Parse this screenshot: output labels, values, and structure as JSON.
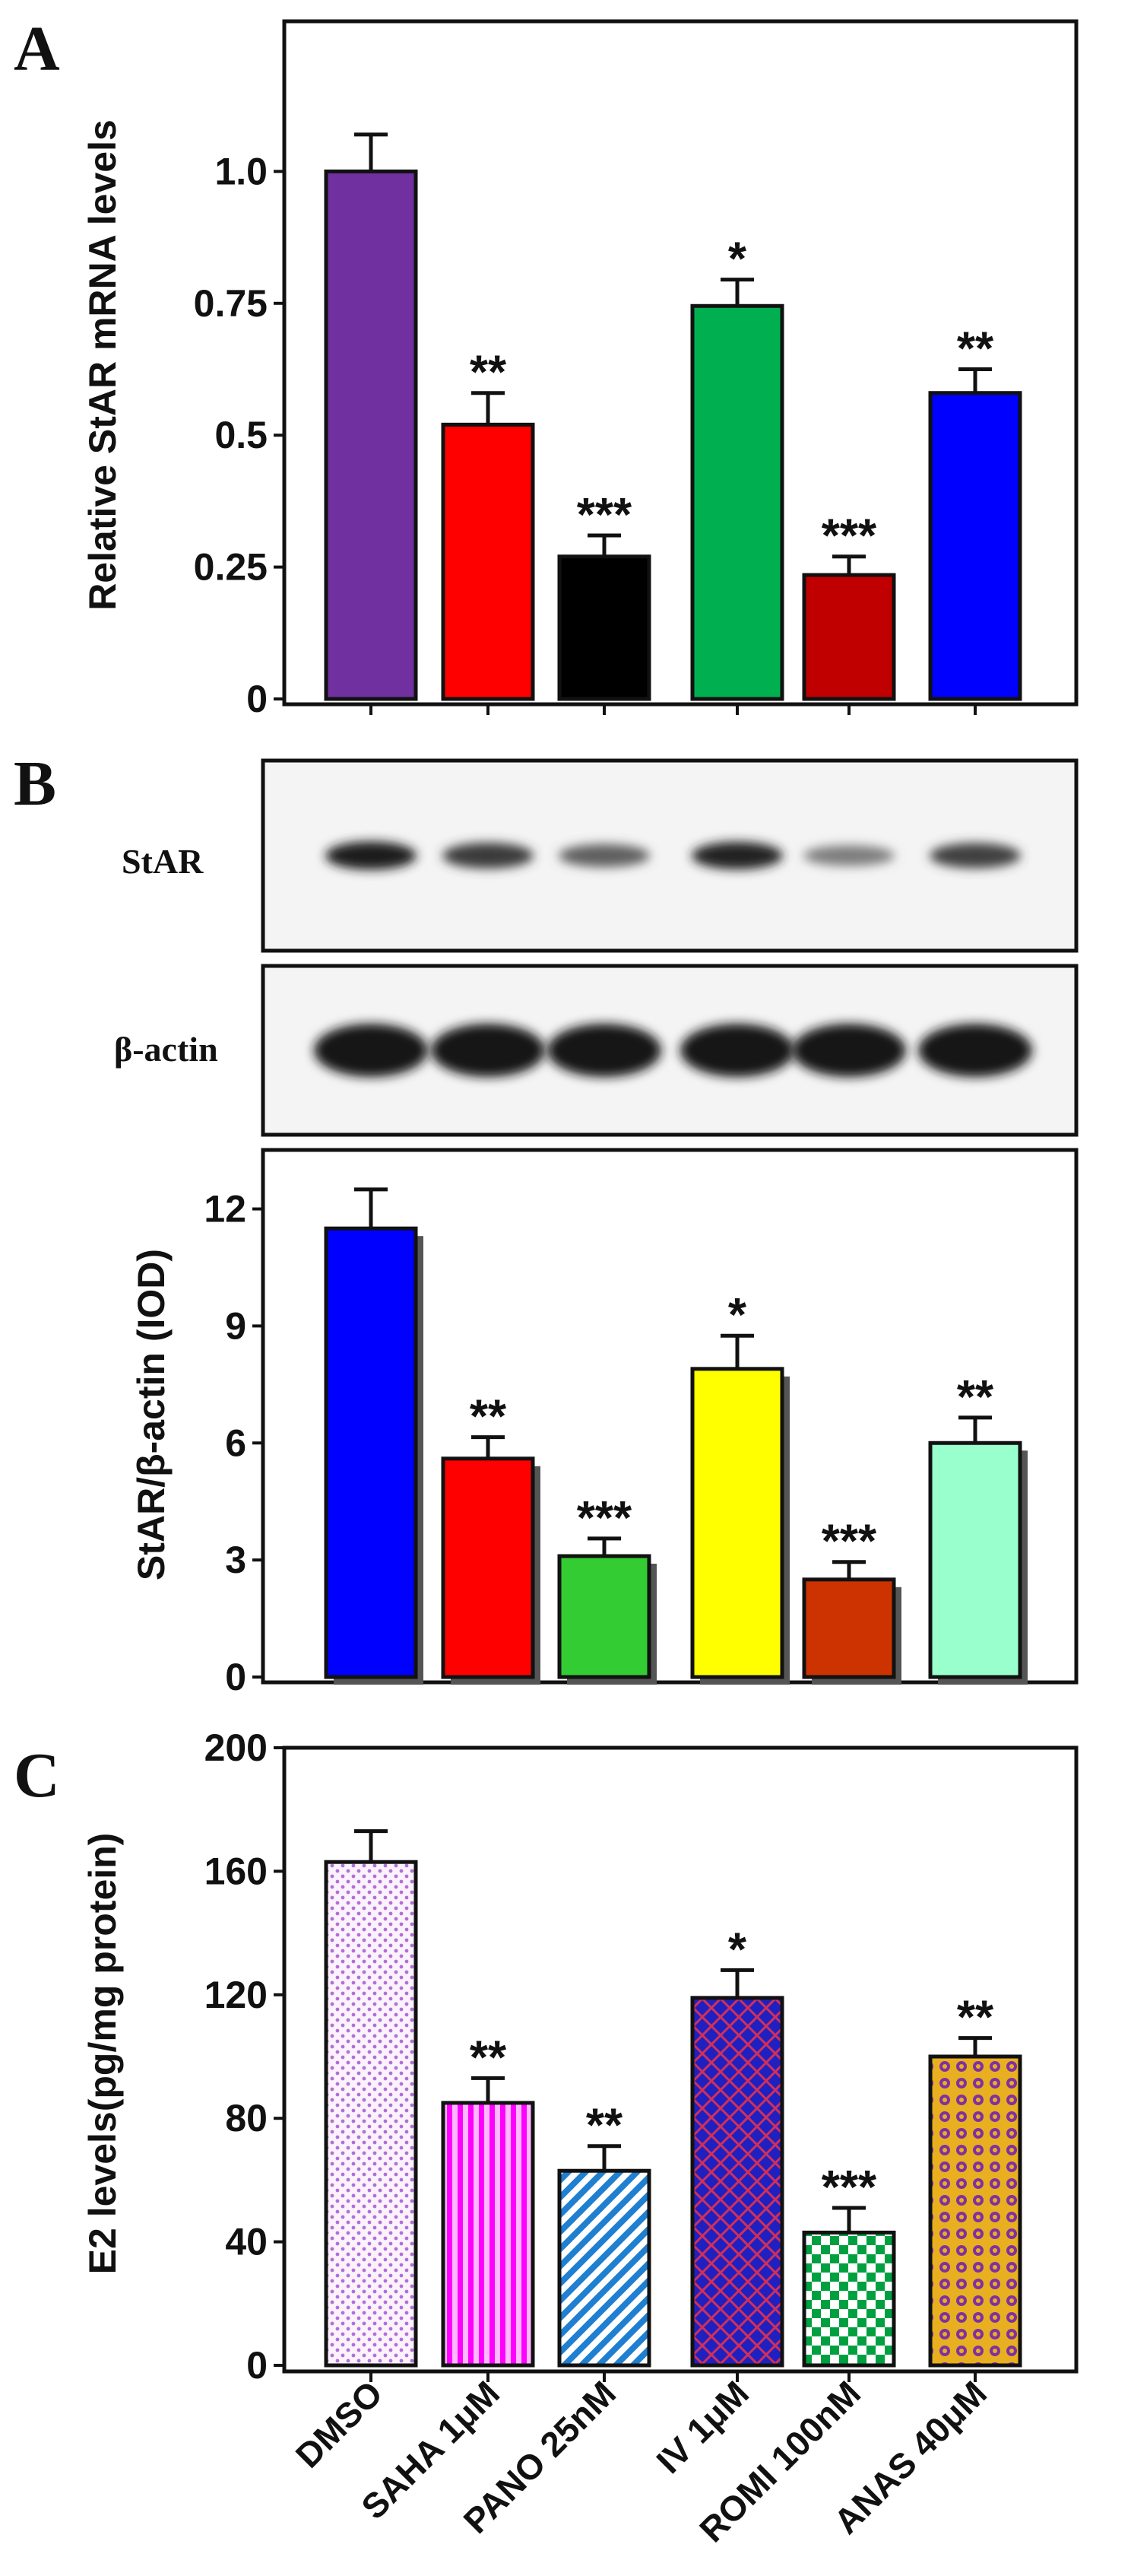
{
  "categories": [
    "DMSO",
    "SAHA 1μM",
    "PANO 25nM",
    "IV 1μM",
    "ROMI 100nM",
    "ANAS 40μM"
  ],
  "panels": {
    "A": {
      "letter": "A"
    },
    "B": {
      "letter": "B",
      "blot_labels": [
        "StAR",
        "β-actin"
      ]
    },
    "C": {
      "letter": "C"
    }
  },
  "chart_data": [
    {
      "panel": "A",
      "type": "bar",
      "categories": [
        "DMSO",
        "SAHA 1μM",
        "PANO 25nM",
        "IV 1μM",
        "ROMI 100nM",
        "ANAS 40μM"
      ],
      "values": [
        1.0,
        0.52,
        0.27,
        0.745,
        0.235,
        0.58
      ],
      "errors": [
        0.07,
        0.06,
        0.04,
        0.05,
        0.035,
        0.045
      ],
      "significance": [
        "",
        "**",
        "***",
        "*",
        "***",
        "**"
      ],
      "colors": [
        "#7030A0",
        "#FF0000",
        "#000000",
        "#00B050",
        "#C00000",
        "#0000FF"
      ],
      "ylabel": "Relative StAR mRNA levels",
      "ylim": [
        0,
        1.25
      ],
      "yticks": [
        0,
        0.25,
        0.5,
        0.75,
        1.0
      ],
      "ytick_labels": [
        "0",
        "0.25",
        "0.5",
        "0.75",
        "1.0"
      ],
      "xlabel": "",
      "grid": false
    },
    {
      "panel": "B",
      "type": "bar",
      "categories": [
        "DMSO",
        "SAHA 1μM",
        "PANO 25nM",
        "IV 1μM",
        "ROMI 100nM",
        "ANAS 40μM"
      ],
      "values": [
        11.5,
        5.6,
        3.1,
        7.9,
        2.5,
        6.0
      ],
      "errors": [
        1.0,
        0.55,
        0.45,
        0.85,
        0.45,
        0.65
      ],
      "significance": [
        "",
        "**",
        "***",
        "*",
        "***",
        "**"
      ],
      "colors": [
        "#0000FF",
        "#FF0000",
        "#33CC33",
        "#FFFF00",
        "#CC3300",
        "#99FFCC"
      ],
      "ylabel": "StAR/β-actin  (IOD)",
      "ylim": [
        0,
        13.2
      ],
      "yticks": [
        0,
        3,
        6,
        9,
        12
      ],
      "ytick_labels": [
        "0",
        "3",
        "6",
        "9",
        "12"
      ],
      "xlabel": "",
      "grid": false
    },
    {
      "panel": "C",
      "type": "bar",
      "categories": [
        "DMSO",
        "SAHA 1μM",
        "PANO 25nM",
        "IV 1μM",
        "ROMI 100nM",
        "ANAS 40μM"
      ],
      "values": [
        163,
        85,
        63,
        119,
        43,
        100
      ],
      "errors": [
        10,
        8,
        8,
        9,
        8,
        6
      ],
      "significance": [
        "",
        "**",
        "**",
        "*",
        "***",
        "**"
      ],
      "fills": [
        "dots-violet",
        "stripes-magenta",
        "diagonal-blue",
        "crosshatch-navy",
        "checker-green",
        "circles-orange"
      ],
      "ylabel": "E2 levels(pg/mg protein)",
      "ylim": [
        0,
        200
      ],
      "yticks": [
        0,
        40,
        80,
        120,
        160,
        200
      ],
      "ytick_labels": [
        "0",
        "40",
        "80",
        "120",
        "160",
        "200"
      ],
      "xlabel": "",
      "grid": false
    }
  ],
  "blot": {
    "lanes": 6,
    "rows": [
      {
        "label": "StAR",
        "band_intensity": [
          0.95,
          0.75,
          0.5,
          0.9,
          0.3,
          0.7
        ]
      },
      {
        "label": "β-actin",
        "band_intensity": [
          1,
          1,
          1,
          1,
          1,
          1
        ]
      }
    ]
  }
}
